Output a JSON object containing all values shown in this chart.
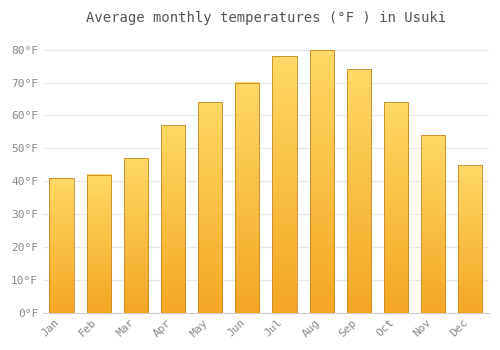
{
  "title": "Average monthly temperatures (°F ) in Usuki",
  "months": [
    "Jan",
    "Feb",
    "Mar",
    "Apr",
    "May",
    "Jun",
    "Jul",
    "Aug",
    "Sep",
    "Oct",
    "Nov",
    "Dec"
  ],
  "values": [
    41,
    42,
    47,
    57,
    64,
    70,
    78,
    80,
    74,
    64,
    54,
    45
  ],
  "bar_color_top": "#F5A623",
  "bar_color_bottom": "#FFD966",
  "bar_border_color": "#C8882A",
  "ylim": [
    0,
    85
  ],
  "yticks": [
    0,
    10,
    20,
    30,
    40,
    50,
    60,
    70,
    80
  ],
  "ytick_labels": [
    "0°F",
    "10°F",
    "20°F",
    "30°F",
    "40°F",
    "50°F",
    "60°F",
    "70°F",
    "80°F"
  ],
  "background_color": "#FFFFFF",
  "plot_bg_color": "#FFFFFF",
  "grid_color": "#E8E8F0",
  "title_fontsize": 10,
  "tick_fontsize": 8,
  "font_family": "monospace",
  "title_color": "#555555",
  "tick_color": "#888888"
}
